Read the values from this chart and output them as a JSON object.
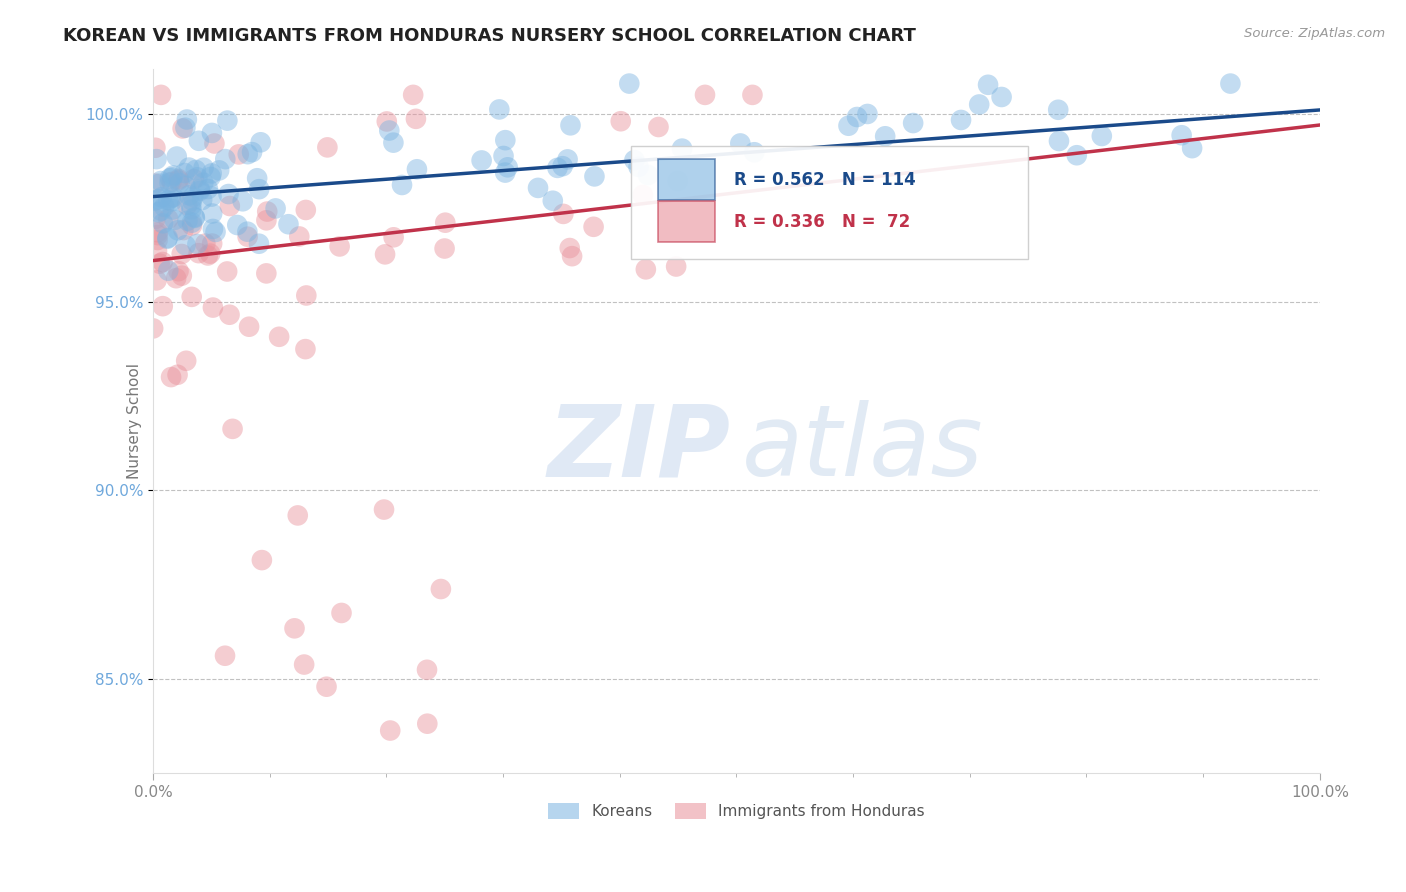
{
  "title": "KOREAN VS IMMIGRANTS FROM HONDURAS NURSERY SCHOOL CORRELATION CHART",
  "source_text": "Source: ZipAtlas.com",
  "ylabel": "Nursery School",
  "xmin": 0.0,
  "xmax": 1.0,
  "ymin": 0.825,
  "ymax": 1.012,
  "yticks": [
    0.85,
    0.9,
    0.95,
    1.0
  ],
  "ytick_labels": [
    "85.0%",
    "90.0%",
    "95.0%",
    "100.0%"
  ],
  "xtick_labels": [
    "0.0%",
    "100.0%"
  ],
  "korean_color": "#7ab3e0",
  "honduras_color": "#e8909a",
  "trend_blue": "#1a4a8a",
  "trend_pink": "#c0324a",
  "R_korean": 0.562,
  "N_korean": 114,
  "R_honduras": 0.336,
  "N_honduras": 72,
  "legend_labels": [
    "Koreans",
    "Immigrants from Honduras"
  ],
  "watermark_ZIP": "ZIP",
  "watermark_atlas": "atlas",
  "background_color": "#ffffff",
  "grid_color": "#bbbbbb",
  "title_fontsize": 13,
  "axis_tick_color": "#888888",
  "ytick_color": "#6fa8dc",
  "blue_line_y0": 0.978,
  "blue_line_y1": 1.001,
  "pink_line_y0": 0.961,
  "pink_line_y1": 0.997
}
